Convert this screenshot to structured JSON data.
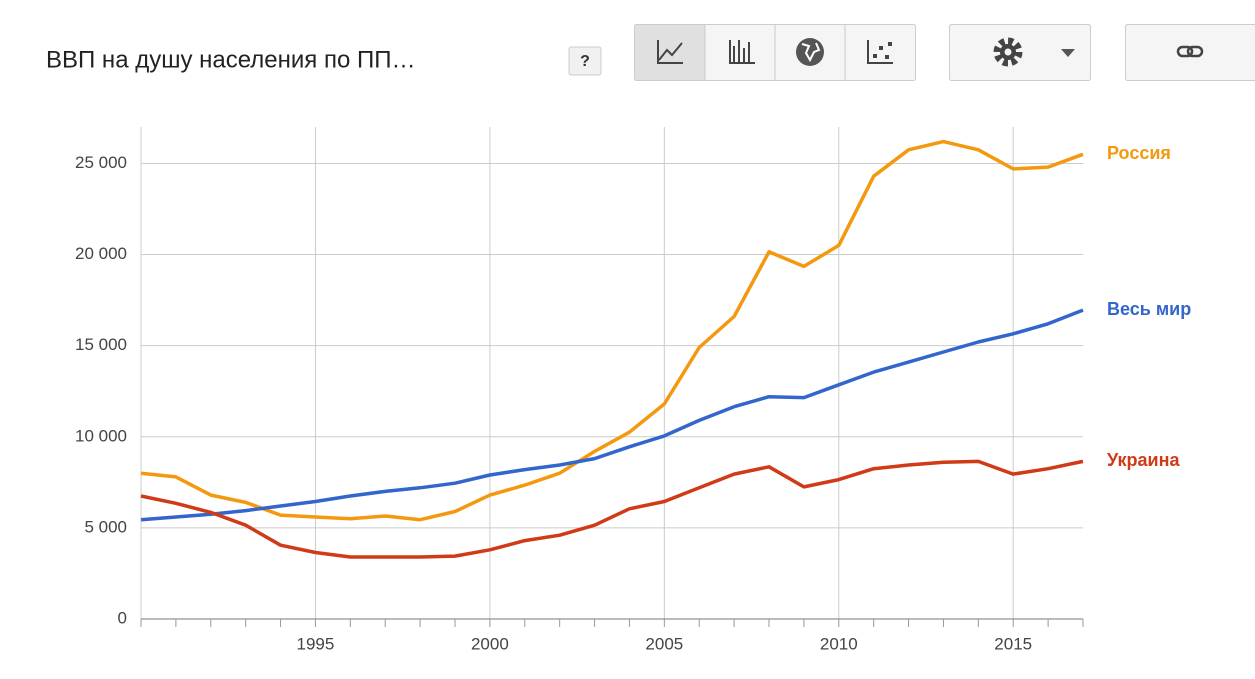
{
  "toolbar": {
    "help_button": "?"
  },
  "chart_data": {
    "type": "line",
    "title": "ВВП на душу населения по ПП…",
    "x": [
      1990,
      1991,
      1992,
      1993,
      1994,
      1995,
      1996,
      1997,
      1998,
      1999,
      2000,
      2001,
      2002,
      2003,
      2004,
      2005,
      2006,
      2007,
      2008,
      2009,
      2010,
      2011,
      2012,
      2013,
      2014,
      2015,
      2016,
      2017
    ],
    "series": [
      {
        "name": "Россия",
        "color": "#f4990f",
        "values": [
          8000,
          7800,
          6800,
          6400,
          5700,
          5600,
          5500,
          5650,
          5450,
          5900,
          6800,
          7350,
          8000,
          9200,
          10250,
          11800,
          14900,
          16600,
          20150,
          19350,
          20500,
          24300,
          25750,
          26200,
          25750,
          24700,
          24800,
          25500
        ]
      },
      {
        "name": "Весь мир",
        "color": "#3366cc",
        "values": [
          5450,
          5600,
          5750,
          5950,
          6200,
          6450,
          6750,
          7000,
          7200,
          7450,
          7900,
          8200,
          8450,
          8800,
          9450,
          10050,
          10900,
          11650,
          12200,
          12150,
          12850,
          13550,
          14100,
          14650,
          15200,
          15650,
          16200,
          16950
        ]
      },
      {
        "name": "Украина",
        "color": "#d03a17",
        "values": [
          6750,
          6350,
          5850,
          5150,
          4050,
          3650,
          3400,
          3400,
          3400,
          3450,
          3800,
          4300,
          4600,
          5150,
          6050,
          6450,
          7200,
          7950,
          8350,
          7250,
          7650,
          8250,
          8450,
          8600,
          8650,
          7950,
          8250,
          8650
        ]
      }
    ],
    "xlim": [
      1990,
      2017
    ],
    "xticks": [
      1995,
      2000,
      2005,
      2010,
      2015
    ],
    "ylim": [
      0,
      27000
    ],
    "yticks": [
      0,
      {
        "value": 5000,
        "label": "5 000"
      },
      {
        "value": 10000,
        "label": "10 000"
      },
      {
        "value": 15000,
        "label": "15 000"
      },
      {
        "value": 20000,
        "label": "20 000"
      },
      {
        "value": 25000,
        "label": "25 000"
      }
    ],
    "grid": true
  }
}
